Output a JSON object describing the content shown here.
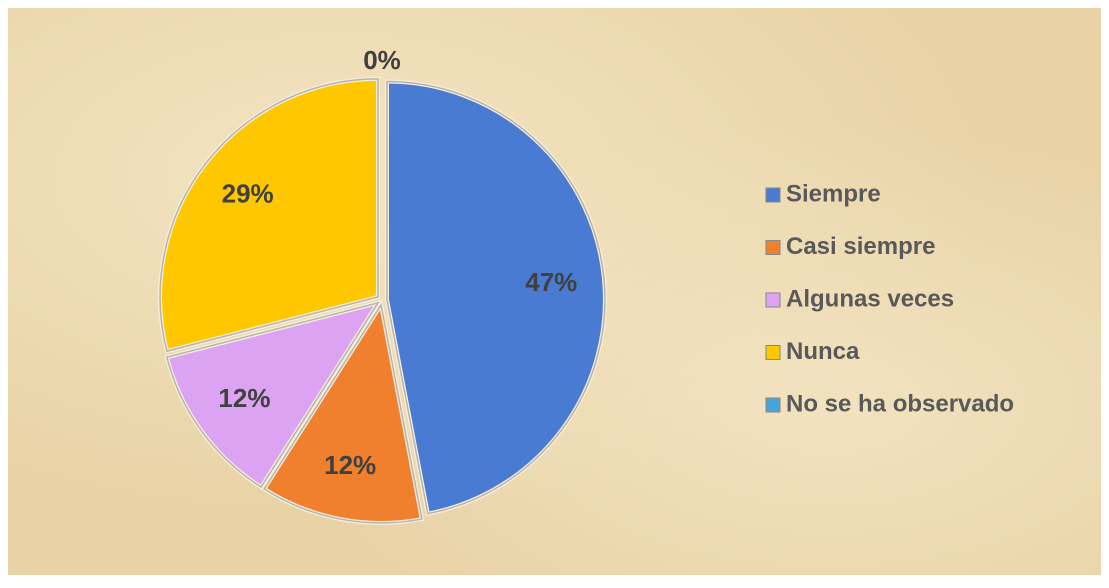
{
  "chart_data": {
    "type": "pie",
    "categories": [
      "Siempre",
      "Casi siempre",
      "Algunas veces",
      "Nunca",
      "No se ha observado"
    ],
    "values": [
      47,
      12,
      12,
      29,
      0
    ],
    "value_labels": [
      "47%",
      "12%",
      "12%",
      "29%",
      "0%"
    ],
    "colors": [
      "#4a7bd2",
      "#f07f2e",
      "#dca3f2",
      "#ffc700",
      "#4aa3d6"
    ],
    "legend": "right"
  }
}
